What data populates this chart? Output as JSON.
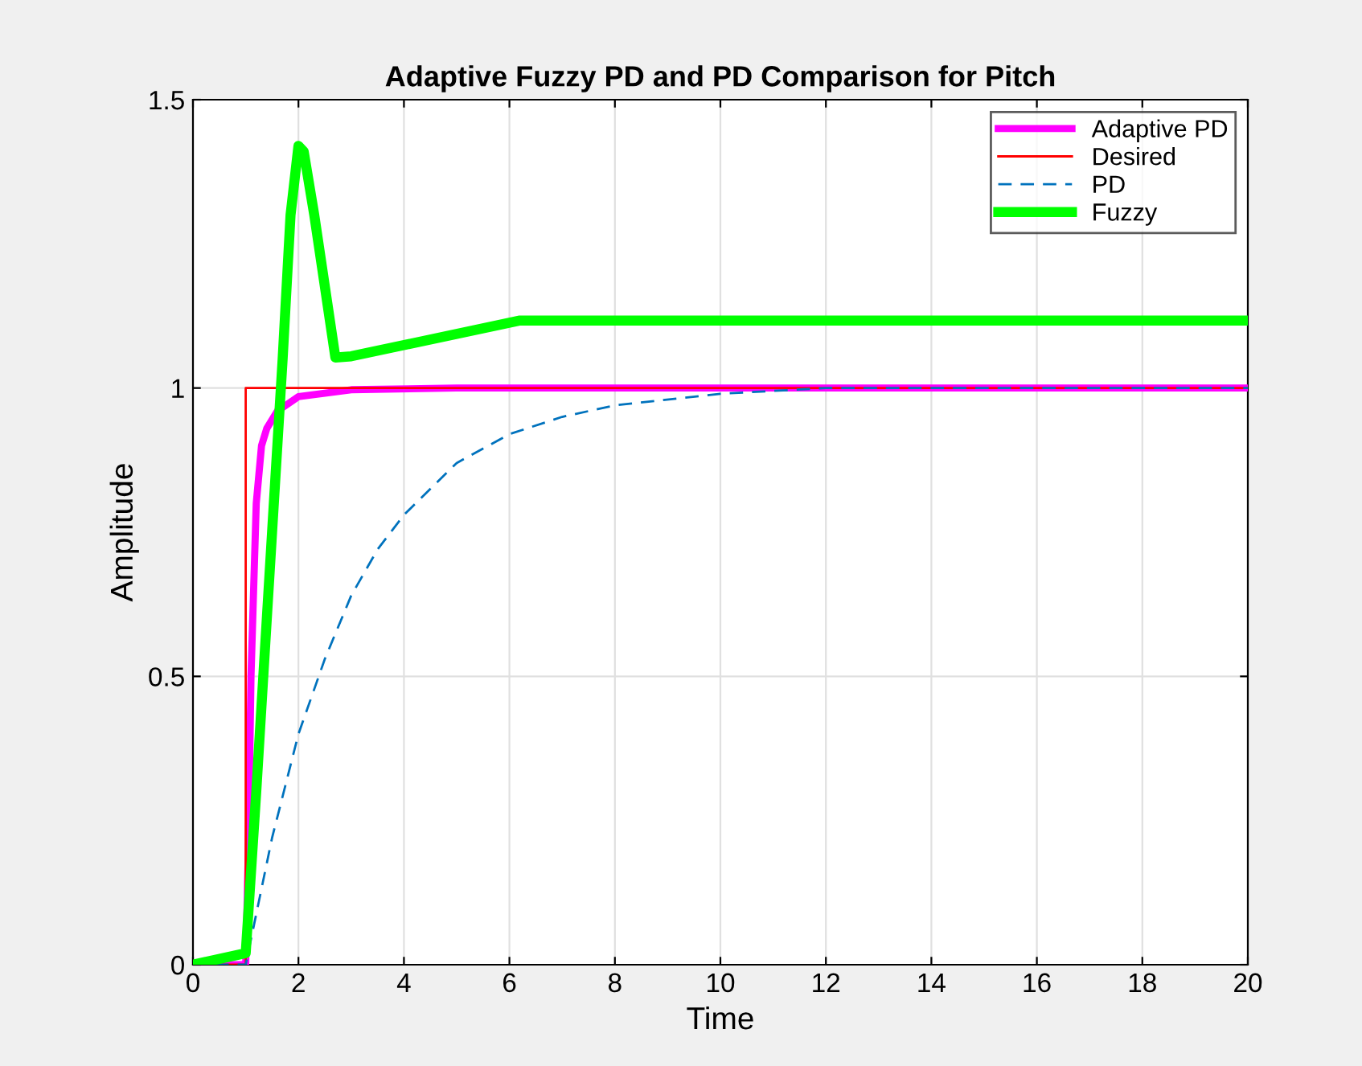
{
  "chart_data": {
    "type": "line",
    "title": "Adaptive Fuzzy PD and PD Comparison for Pitch",
    "xlabel": "Time",
    "ylabel": "Amplitude",
    "xlim": [
      0,
      20
    ],
    "ylim": [
      0,
      1.5
    ],
    "xticks": [
      0,
      2,
      4,
      6,
      8,
      10,
      12,
      14,
      16,
      18,
      20
    ],
    "yticks": [
      0,
      0.5,
      1,
      1.5
    ],
    "grid": true,
    "legend": "top right",
    "series": [
      {
        "name": "Adaptive PD",
        "color": "#ff00ff",
        "x": [
          0,
          1,
          1.05,
          1.1,
          1.2,
          1.3,
          1.4,
          1.6,
          2,
          3,
          5,
          20
        ],
        "values": [
          0,
          0,
          0.2,
          0.5,
          0.8,
          0.9,
          0.93,
          0.96,
          0.985,
          0.997,
          1,
          1
        ]
      },
      {
        "name": "Desired",
        "color": "#ff0000",
        "x": [
          0,
          1,
          1,
          20
        ],
        "values": [
          0,
          0,
          1,
          1
        ]
      },
      {
        "name": "PD",
        "color": "#0072bd",
        "line_style": "dashed",
        "x": [
          0,
          1,
          1.5,
          2,
          2.5,
          3,
          3.5,
          4,
          5,
          6,
          7,
          8,
          10,
          12,
          14,
          16,
          18,
          20
        ],
        "values": [
          0,
          0,
          0.22,
          0.4,
          0.53,
          0.64,
          0.72,
          0.78,
          0.87,
          0.92,
          0.95,
          0.97,
          0.99,
          1,
          1,
          1,
          1,
          1
        ]
      },
      {
        "name": "Fuzzy",
        "color": "#00ff00",
        "x": [
          0,
          1,
          1.2,
          1.5,
          1.7,
          1.85,
          2,
          2.1,
          2.3,
          2.7,
          3,
          6.2,
          20
        ],
        "values": [
          0,
          0.02,
          0.3,
          0.75,
          1.05,
          1.3,
          1.42,
          1.41,
          1.3,
          1.053,
          1.055,
          1.117,
          1.117
        ]
      }
    ]
  }
}
